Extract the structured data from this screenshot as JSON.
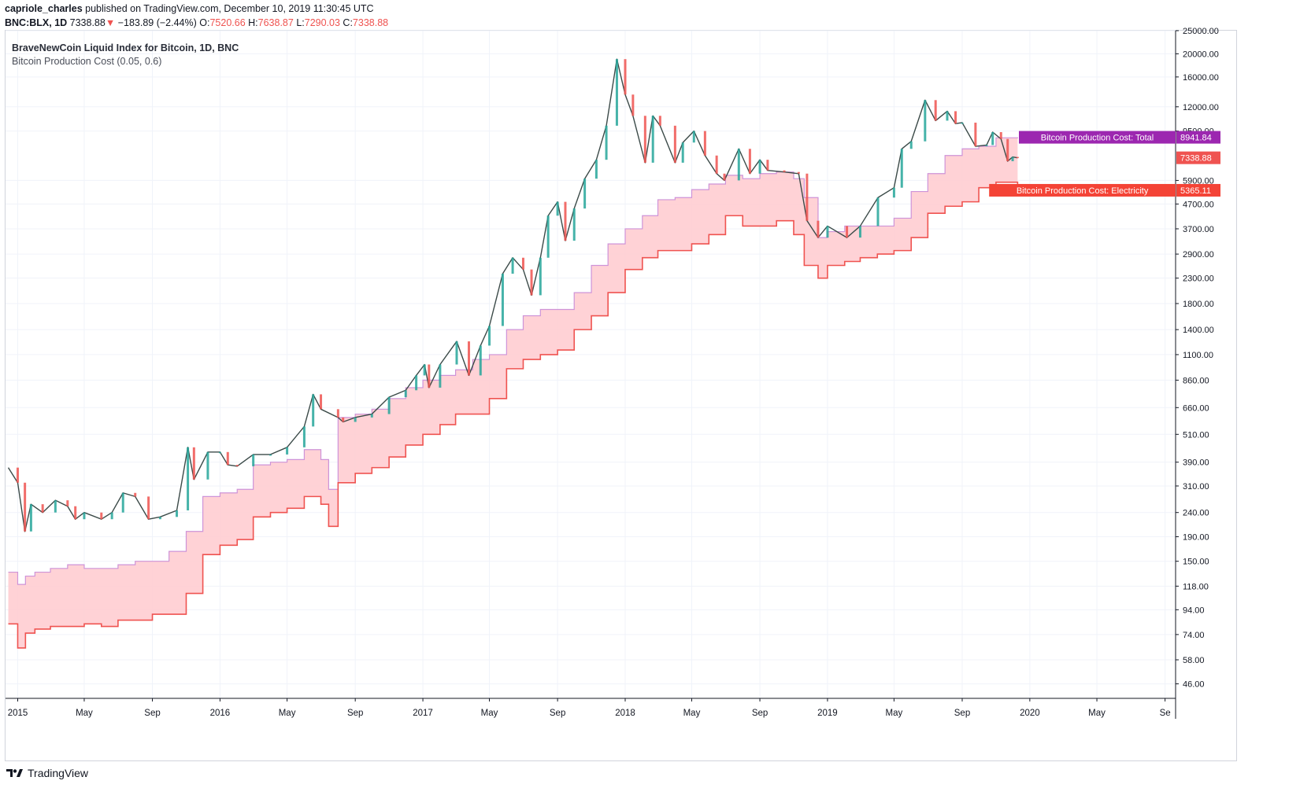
{
  "header": {
    "publisher": "capriole_charles",
    "published_text": "published on TradingView.com, December 10, 2019 11:30:45 UTC",
    "symbol": "BNC:BLX, 1D",
    "last": "7338.88",
    "change_arrow": "▼",
    "change": "−183.89 (−2.44%)",
    "o_label": "O:",
    "o_value": "7520.66",
    "h_label": "H:",
    "h_value": "7638.87",
    "l_label": "L:",
    "l_value": "7290.03",
    "c_label": "C:",
    "c_value": "7338.88"
  },
  "legend": {
    "title": "BraveNewCoin Liquid Index for Bitcoin, 1D, BNC",
    "indicator": "Bitcoin Production Cost (0.05, 0.6)"
  },
  "labels": {
    "total": "Bitcoin Production Cost: Total",
    "total_value": "8941.84",
    "price_value": "7338.88",
    "electricity": "Bitcoin Production Cost: Electricity",
    "electricity_value": "5365.11"
  },
  "footer": {
    "brand": "TradingView"
  },
  "colors": {
    "up": "#26a69a",
    "down": "#ef5350",
    "band_fill": "#ffcdd2",
    "total_line": "#ce93d8",
    "electricity_line": "#ef5350",
    "total_tag": "#9c27b0",
    "electricity_tag": "#f44336",
    "price_tag": "#ef5350",
    "grid": "#f0f3fa"
  },
  "chart_data": {
    "type": "line",
    "y_scale": "log",
    "ylim": [
      40,
      25000
    ],
    "y_ticks": [
      "25000.00",
      "20000.00",
      "16000.00",
      "12000.00",
      "9500.00",
      "5900.00",
      "4700.00",
      "3700.00",
      "2900.00",
      "2300.00",
      "1800.00",
      "1400.00",
      "1100.00",
      "860.00",
      "660.00",
      "510.00",
      "390.00",
      "310.00",
      "240.00",
      "190.00",
      "150.00",
      "118.00",
      "94.00",
      "74.00",
      "58.00",
      "46.00"
    ],
    "x_ticks": [
      {
        "date": "2015-01-01",
        "label": "2015"
      },
      {
        "date": "2015-05-01",
        "label": "May"
      },
      {
        "date": "2015-09-01",
        "label": "Sep"
      },
      {
        "date": "2016-01-01",
        "label": "2016"
      },
      {
        "date": "2016-05-01",
        "label": "May"
      },
      {
        "date": "2016-09-01",
        "label": "Sep"
      },
      {
        "date": "2017-01-01",
        "label": "2017"
      },
      {
        "date": "2017-05-01",
        "label": "May"
      },
      {
        "date": "2017-09-01",
        "label": "Sep"
      },
      {
        "date": "2018-01-01",
        "label": "2018"
      },
      {
        "date": "2018-05-01",
        "label": "May"
      },
      {
        "date": "2018-09-01",
        "label": "Sep"
      },
      {
        "date": "2019-01-01",
        "label": "2019"
      },
      {
        "date": "2019-05-01",
        "label": "May"
      },
      {
        "date": "2019-09-01",
        "label": "Sep"
      },
      {
        "date": "2020-01-01",
        "label": "2020"
      },
      {
        "date": "2020-05-01",
        "label": "May"
      },
      {
        "date": "2020-09-01",
        "label": "Se"
      }
    ],
    "series": [
      {
        "name": "Bitcoin Production Cost: Total",
        "dates": [
          "2014-12-15",
          "2015-01-01",
          "2015-01-15",
          "2015-02-01",
          "2015-03-01",
          "2015-04-01",
          "2015-05-01",
          "2015-06-01",
          "2015-07-01",
          "2015-08-01",
          "2015-09-01",
          "2015-10-01",
          "2015-11-01",
          "2015-12-01",
          "2016-01-01",
          "2016-02-01",
          "2016-03-01",
          "2016-04-01",
          "2016-05-01",
          "2016-06-01",
          "2016-07-01",
          "2016-07-15",
          "2016-08-01",
          "2016-09-01",
          "2016-10-01",
          "2016-11-01",
          "2016-12-01",
          "2017-01-01",
          "2017-02-01",
          "2017-03-01",
          "2017-04-01",
          "2017-05-01",
          "2017-06-01",
          "2017-07-01",
          "2017-08-01",
          "2017-09-01",
          "2017-10-01",
          "2017-11-01",
          "2017-12-01",
          "2018-01-01",
          "2018-02-01",
          "2018-03-01",
          "2018-04-01",
          "2018-05-01",
          "2018-06-01",
          "2018-07-01",
          "2018-08-01",
          "2018-09-01",
          "2018-10-01",
          "2018-11-01",
          "2018-11-20",
          "2018-12-15",
          "2019-01-01",
          "2019-02-01",
          "2019-03-01",
          "2019-04-01",
          "2019-05-01",
          "2019-06-01",
          "2019-07-01",
          "2019-08-01",
          "2019-09-01",
          "2019-10-01",
          "2019-11-01",
          "2019-12-10"
        ],
        "values": [
          135,
          120,
          130,
          135,
          140,
          145,
          140,
          140,
          145,
          150,
          150,
          165,
          200,
          280,
          290,
          300,
          380,
          390,
          400,
          440,
          400,
          300,
          600,
          620,
          650,
          720,
          800,
          860,
          900,
          950,
          1050,
          1100,
          1400,
          1600,
          1700,
          1700,
          2000,
          2600,
          3200,
          3700,
          4200,
          4900,
          5000,
          5400,
          5700,
          6200,
          6000,
          6300,
          6400,
          6000,
          5000,
          3400,
          3600,
          3800,
          3800,
          3800,
          4100,
          5300,
          6300,
          7500,
          8000,
          8200,
          8900,
          8941.84
        ]
      },
      {
        "name": "Bitcoin Production Cost: Electricity",
        "dates": [
          "2014-12-15",
          "2015-01-01",
          "2015-01-15",
          "2015-02-01",
          "2015-03-01",
          "2015-04-01",
          "2015-05-01",
          "2015-06-01",
          "2015-07-01",
          "2015-08-01",
          "2015-09-01",
          "2015-10-01",
          "2015-11-01",
          "2015-12-01",
          "2016-01-01",
          "2016-02-01",
          "2016-03-01",
          "2016-04-01",
          "2016-05-01",
          "2016-06-01",
          "2016-07-01",
          "2016-07-15",
          "2016-08-01",
          "2016-09-01",
          "2016-10-01",
          "2016-11-01",
          "2016-12-01",
          "2017-01-01",
          "2017-02-01",
          "2017-03-01",
          "2017-04-01",
          "2017-05-01",
          "2017-06-01",
          "2017-07-01",
          "2017-08-01",
          "2017-09-01",
          "2017-10-01",
          "2017-11-01",
          "2017-12-01",
          "2018-01-01",
          "2018-02-01",
          "2018-03-01",
          "2018-04-01",
          "2018-05-01",
          "2018-06-01",
          "2018-07-01",
          "2018-08-01",
          "2018-09-01",
          "2018-10-01",
          "2018-11-01",
          "2018-11-20",
          "2018-12-15",
          "2019-01-01",
          "2019-02-01",
          "2019-03-01",
          "2019-04-01",
          "2019-05-01",
          "2019-06-01",
          "2019-07-01",
          "2019-08-01",
          "2019-09-01",
          "2019-10-01",
          "2019-11-01",
          "2019-12-10"
        ],
        "values": [
          82,
          65,
          75,
          78,
          80,
          80,
          82,
          80,
          85,
          85,
          90,
          90,
          110,
          160,
          175,
          185,
          230,
          240,
          250,
          280,
          260,
          210,
          320,
          350,
          370,
          410,
          460,
          510,
          560,
          620,
          620,
          720,
          960,
          1050,
          1100,
          1150,
          1400,
          1600,
          2000,
          2500,
          2800,
          3000,
          3000,
          3200,
          3500,
          4200,
          3800,
          3800,
          4000,
          3500,
          2600,
          2300,
          2600,
          2700,
          2800,
          2900,
          3000,
          3400,
          4300,
          4600,
          4800,
          5500,
          5800,
          5365.11
        ]
      },
      {
        "name": "BNC:BLX close",
        "dates": [
          "2014-12-15",
          "2015-01-01",
          "2015-01-14",
          "2015-01-25",
          "2015-02-15",
          "2015-03-10",
          "2015-04-01",
          "2015-04-15",
          "2015-05-01",
          "2015-06-01",
          "2015-06-20",
          "2015-07-10",
          "2015-08-01",
          "2015-08-25",
          "2015-09-15",
          "2015-10-15",
          "2015-11-04",
          "2015-11-15",
          "2015-12-10",
          "2016-01-01",
          "2016-01-15",
          "2016-02-01",
          "2016-03-01",
          "2016-04-01",
          "2016-05-01",
          "2016-06-01",
          "2016-06-17",
          "2016-07-01",
          "2016-08-01",
          "2016-08-10",
          "2016-09-01",
          "2016-10-01",
          "2016-11-01",
          "2016-12-01",
          "2016-12-20",
          "2017-01-04",
          "2017-01-12",
          "2017-02-01",
          "2017-03-03",
          "2017-03-25",
          "2017-04-15",
          "2017-05-01",
          "2017-05-25",
          "2017-06-12",
          "2017-07-01",
          "2017-07-16",
          "2017-08-01",
          "2017-08-15",
          "2017-09-01",
          "2017-09-15",
          "2017-10-01",
          "2017-10-20",
          "2017-11-10",
          "2017-11-28",
          "2017-12-17",
          "2018-01-01",
          "2018-01-15",
          "2018-02-06",
          "2018-02-20",
          "2018-03-05",
          "2018-04-01",
          "2018-04-15",
          "2018-05-05",
          "2018-05-25",
          "2018-06-15",
          "2018-06-29",
          "2018-07-25",
          "2018-08-14",
          "2018-09-01",
          "2018-09-15",
          "2018-10-15",
          "2018-11-10",
          "2018-11-25",
          "2018-12-15",
          "2019-01-01",
          "2019-02-05",
          "2019-03-01",
          "2019-04-02",
          "2019-05-01",
          "2019-05-15",
          "2019-06-01",
          "2019-06-26",
          "2019-07-15",
          "2019-08-05",
          "2019-08-20",
          "2019-09-01",
          "2019-09-25",
          "2019-10-15",
          "2019-10-26",
          "2019-11-10",
          "2019-11-22",
          "2019-12-01",
          "2019-12-10"
        ],
        "values": [
          370,
          320,
          200,
          260,
          240,
          270,
          255,
          225,
          240,
          225,
          240,
          290,
          280,
          225,
          230,
          245,
          450,
          330,
          430,
          430,
          380,
          375,
          420,
          420,
          450,
          550,
          750,
          650,
          600,
          575,
          600,
          620,
          730,
          780,
          900,
          1000,
          800,
          1000,
          1250,
          900,
          1200,
          1450,
          2400,
          2800,
          2500,
          1950,
          2800,
          4200,
          4800,
          3300,
          4500,
          6000,
          7200,
          10000,
          19000,
          13500,
          11000,
          7000,
          11000,
          10000,
          7000,
          8500,
          9500,
          7500,
          6300,
          5900,
          8000,
          6300,
          7200,
          6500,
          6400,
          6300,
          4000,
          3400,
          3800,
          3400,
          3800,
          5000,
          5500,
          8000,
          8600,
          12800,
          10500,
          11500,
          10200,
          10300,
          8200,
          8300,
          9400,
          8800,
          7100,
          7400,
          7338.88
        ]
      }
    ]
  }
}
